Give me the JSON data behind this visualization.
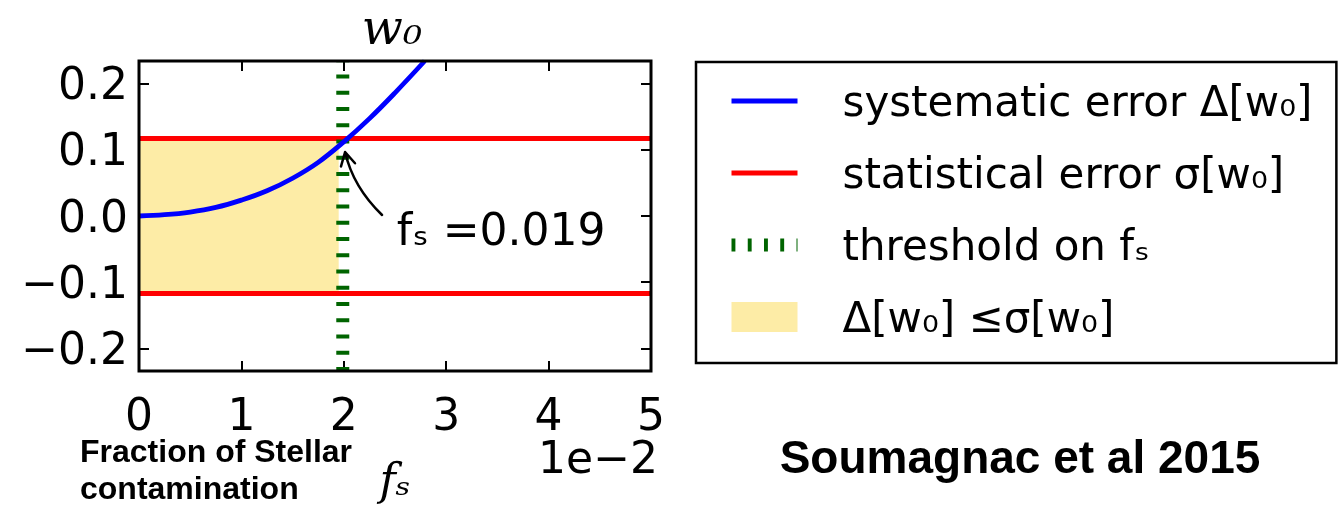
{
  "chart_data": {
    "type": "line",
    "title": "w₀",
    "xlabel": "fₛ",
    "xlim": [
      0,
      5
    ],
    "xticks": [
      0,
      1,
      2,
      3,
      4,
      5
    ],
    "ylim": [
      -0.234,
      0.234
    ],
    "yticks": [
      {
        "value": -0.2,
        "label": "−0.2"
      },
      {
        "value": -0.1,
        "label": "−0.1"
      },
      {
        "value": 0,
        "label": "0.0"
      },
      0.1,
      0.2
    ],
    "series": [
      {
        "name": "systematic error Δ[w₀]",
        "color": "#0000ff",
        "x": [
          0,
          0.25,
          0.5,
          0.75,
          1.0,
          1.25,
          1.5,
          1.75,
          2.0,
          2.25,
          2.5,
          2.79
        ],
        "values": [
          0,
          0.002,
          0.006,
          0.013,
          0.024,
          0.038,
          0.057,
          0.081,
          0.112,
          0.147,
          0.186,
          0.234
        ]
      },
      {
        "name": "statistical error σ[w₀]",
        "color": "#ff0000",
        "x": [
          0,
          5
        ],
        "values": [
          0.117,
          0.117
        ]
      },
      {
        "color": "#ff0000",
        "x": [
          0,
          5
        ],
        "values": [
          -0.117,
          -0.117
        ]
      },
      {
        "name": "threshold on fₛ",
        "color": "#006400",
        "x": [
          1.99,
          1.99
        ],
        "values": [
          -0.234,
          0.234
        ],
        "line_style": "dashed"
      },
      {
        "type": "area",
        "name": "Δ[w₀] ≤σ[w₀]",
        "color": "#fdeca6",
        "x": [
          0,
          1.95
        ],
        "values": [
          0.117,
          0.117
        ]
      },
      {
        "type": "area",
        "color": "#fdeca6",
        "x": [
          0,
          1.95
        ],
        "values": [
          -0.117,
          -0.117
        ]
      }
    ],
    "legend": "right",
    "marker": "none",
    "annotations": [
      {
        "text": "fₛ =0.019",
        "x": 1.99,
        "y": 0.117
      },
      "Fraction of Stellar contamination",
      "1e−2",
      "Soumagnac et al 2015"
    ]
  }
}
